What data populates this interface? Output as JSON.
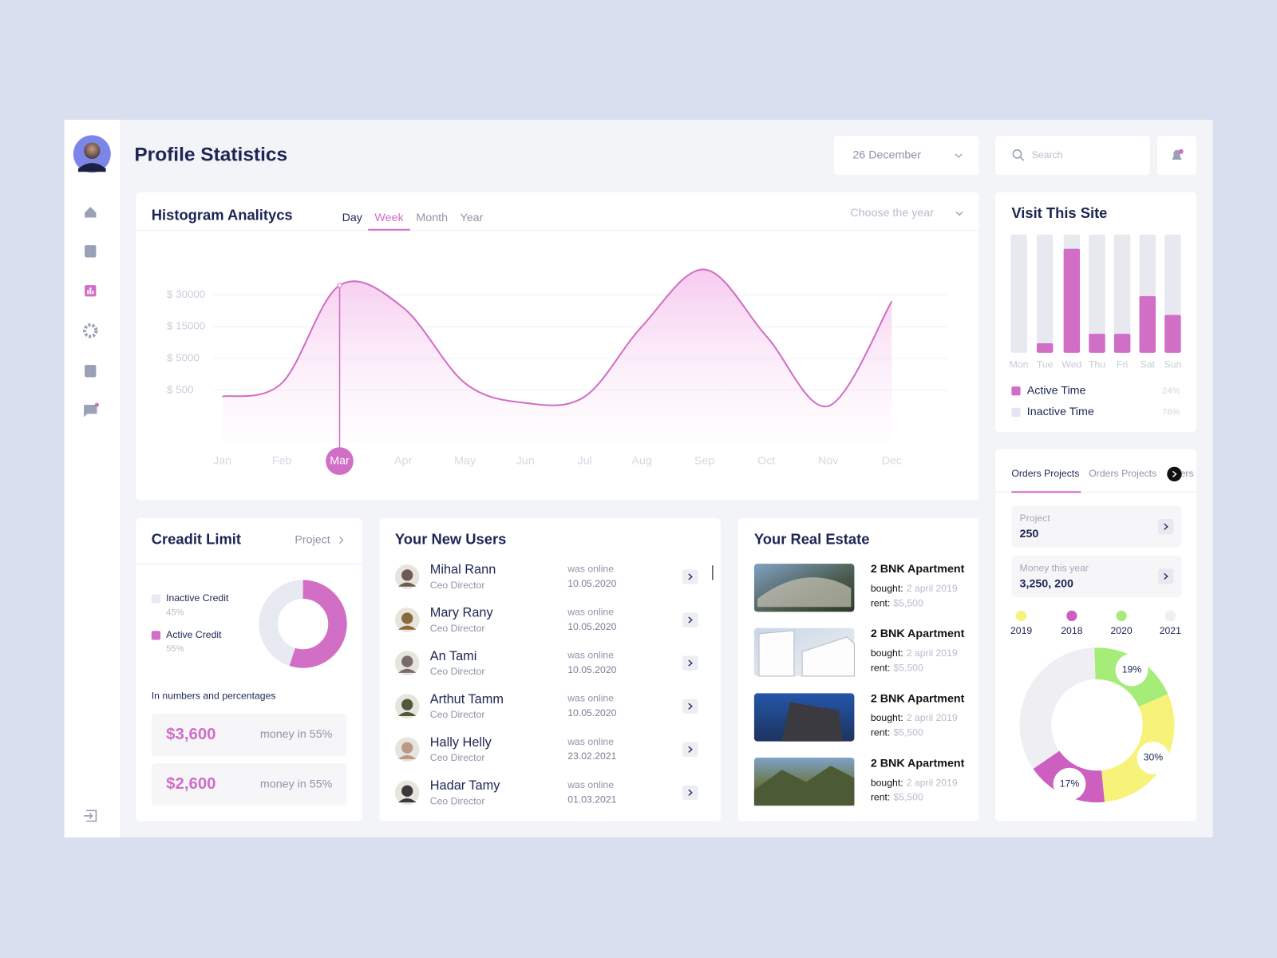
{
  "header": {
    "title": "Profile Statistics",
    "date": "26 December",
    "search": "Search"
  },
  "chart_data": [
    {
      "type": "area",
      "title": "Histogram Analitycs",
      "tabs": [
        "Day",
        "Week",
        "Month",
        "Year"
      ],
      "active_tab": "Week",
      "year_select": "Choose the year",
      "categories": [
        "Jan",
        "Feb",
        "Mar",
        "Apr",
        "May",
        "Jun",
        "Jul",
        "Aug",
        "Sep",
        "Oct",
        "Nov",
        "Dec"
      ],
      "values": [
        400,
        1500,
        36000,
        24000,
        1500,
        300,
        400,
        15000,
        46000,
        12000,
        250,
        27000
      ],
      "highlight": "Mar",
      "color": "#d16ec6",
      "ylim": [
        0,
        50000
      ],
      "yticks": [
        {
          "value": 500,
          "label": "$ 500"
        },
        {
          "value": 5000,
          "label": "$ 5000"
        },
        {
          "value": 15000,
          "label": "$ 15000"
        },
        {
          "value": 30000,
          "label": "$ 30000"
        }
      ],
      "grid": true
    },
    {
      "type": "bar",
      "title": "Visit This Site",
      "categories": [
        "Mon",
        "Tue",
        "Wed",
        "Thu",
        "Fri",
        "Sat",
        "Sun"
      ],
      "values": [
        0,
        8,
        88,
        16,
        16,
        48,
        32
      ],
      "ylim": [
        0,
        100
      ],
      "color": "#d16ec6",
      "track_color": "#e8e9ef",
      "legend": [
        {
          "name": "Active Time",
          "share": "24%",
          "color": "#d16ec6"
        },
        {
          "name": "Inactive Time",
          "share": "76%",
          "color": "#e3e5f0"
        }
      ]
    },
    {
      "type": "donut",
      "title": "Creadit Limit",
      "link": "Project",
      "categories": [
        "Inactive Credit",
        "Active Credit"
      ],
      "values": [
        45,
        55
      ],
      "value_labels": [
        "45%",
        "55%"
      ],
      "colors": [
        "#e8eaf2",
        "#d16ec6"
      ],
      "note": "In numbers and percentages",
      "amounts": [
        {
          "amount": "$3,600",
          "caption": "money in 55%"
        },
        {
          "amount": "$2,600",
          "caption": "money in 55%"
        }
      ]
    },
    {
      "type": "donut",
      "categories": [
        "2019",
        "2018",
        "2020",
        "2021"
      ],
      "values": [
        30,
        17,
        19,
        34
      ],
      "value_labels": [
        "30%",
        "17%",
        "19%",
        null
      ],
      "colors": [
        "#f6f27a",
        "#cc5fbf",
        "#a6ec78",
        "#efeff3"
      ]
    }
  ],
  "users": {
    "title": "Your New Users",
    "items": [
      {
        "name": "Mihal Rann",
        "role": "Ceo Director",
        "status": "was online",
        "date": "10.05.2020"
      },
      {
        "name": "Mary Rany",
        "role": "Ceo Director",
        "status": "was online",
        "date": "10.05.2020"
      },
      {
        "name": "An Tami",
        "role": "Ceo Director",
        "status": "was online",
        "date": "10.05.2020"
      },
      {
        "name": "Arthut Tamm",
        "role": "Ceo Director",
        "status": "was online",
        "date": "10.05.2020"
      },
      {
        "name": "Hally Helly",
        "role": "Ceo Director",
        "status": "was online",
        "date": "23.02.2021"
      },
      {
        "name": "Hadar Tamy",
        "role": "Ceo Director",
        "status": "was online",
        "date": "01.03.2021"
      }
    ]
  },
  "real_estate": {
    "title": "Your Real Estate",
    "items": [
      {
        "title": "2 BNK Apartment",
        "bought_label": "bought:",
        "bought": "2 april 2019",
        "rent_label": "rent:",
        "rent": "$5,500"
      },
      {
        "title": "2 BNK Apartment",
        "bought_label": "bought:",
        "bought": "2 april 2019",
        "rent_label": "rent:",
        "rent": "$5,500"
      },
      {
        "title": "2 BNK Apartment",
        "bought_label": "bought:",
        "bought": "2 april 2019",
        "rent_label": "rent:",
        "rent": "$5,500"
      },
      {
        "title": "2 BNK Apartment",
        "bought_label": "bought:",
        "bought": "2 april 2019",
        "rent_label": "rent:",
        "rent": "$5,500"
      }
    ]
  },
  "orders": {
    "tabs": [
      "Orders Projects",
      "Orders Projects",
      "ers"
    ],
    "stats": [
      {
        "label": "Project",
        "value": "250"
      },
      {
        "label": "Money this year",
        "value": "3,250, 200"
      }
    ]
  }
}
